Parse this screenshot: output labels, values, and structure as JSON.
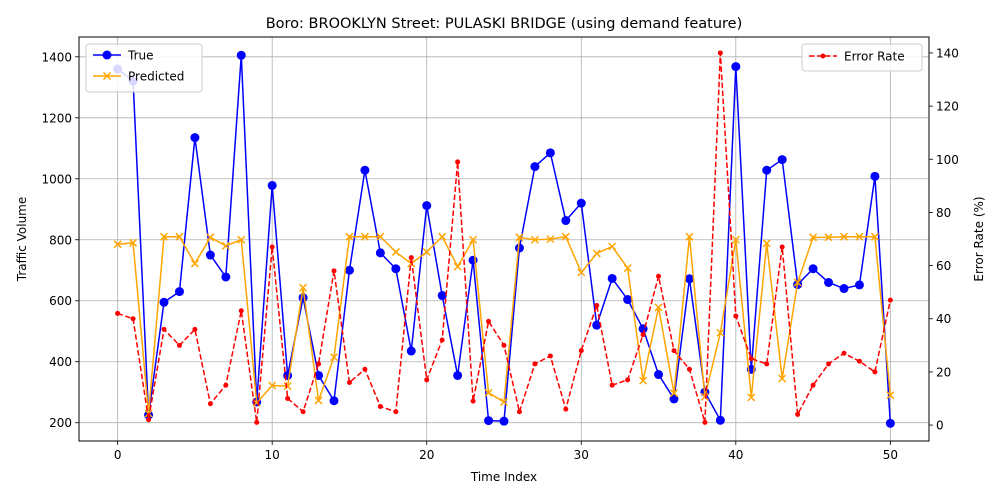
{
  "chart_data": {
    "type": "line",
    "title": "Boro: BROOKLYN Street: PULASKI BRIDGE (using demand feature)",
    "xlabel": "Time Index",
    "ylabel": "Traffic Volume",
    "y2label": "Error Rate (%)",
    "xlim": [
      -2.5,
      52.5
    ],
    "ylim": [
      140,
      1465
    ],
    "y2lim": [
      -6,
      146
    ],
    "xticks": [
      "0",
      "10",
      "20",
      "30",
      "40",
      "50"
    ],
    "yticks": [
      "200",
      "400",
      "600",
      "800",
      "1000",
      "1200",
      "1400"
    ],
    "y2ticks": [
      "0",
      "20",
      "40",
      "60",
      "80",
      "100",
      "120",
      "140"
    ],
    "grid": true,
    "x": [
      0,
      1,
      2,
      3,
      4,
      5,
      6,
      7,
      8,
      9,
      10,
      11,
      12,
      13,
      14,
      15,
      16,
      17,
      18,
      19,
      20,
      21,
      22,
      23,
      24,
      25,
      26,
      27,
      28,
      29,
      30,
      31,
      32,
      33,
      34,
      35,
      36,
      37,
      38,
      39,
      40,
      41,
      42,
      43,
      44,
      45,
      46,
      47,
      48,
      49,
      50
    ],
    "series": [
      {
        "name": "True",
        "axis": "left",
        "color": "#0000ff",
        "marker": "circle",
        "values": [
          1360,
          1320,
          225,
          595,
          630,
          1135,
          750,
          678,
          1405,
          268,
          978,
          355,
          610,
          355,
          272,
          700,
          1028,
          757,
          705,
          435,
          912,
          617,
          355,
          733,
          207,
          205,
          773,
          1040,
          1085,
          863,
          920,
          520,
          673,
          604,
          508,
          358,
          278,
          672,
          300,
          208,
          1368,
          375,
          1028,
          1063,
          653,
          705,
          660,
          640,
          652,
          1008,
          198
        ]
      },
      {
        "name": "Predicted",
        "axis": "left",
        "color": "#ffa500",
        "marker": "x",
        "values": [
          785,
          790,
          230,
          810,
          810,
          722,
          808,
          780,
          800,
          265,
          322,
          320,
          643,
          273,
          415,
          810,
          810,
          810,
          760,
          722,
          760,
          810,
          712,
          800,
          298,
          268,
          808,
          800,
          802,
          810,
          693,
          755,
          778,
          707,
          338,
          578,
          297,
          810,
          285,
          495,
          800,
          283,
          788,
          345,
          660,
          808,
          808,
          810,
          810,
          810,
          290
        ]
      },
      {
        "name": "Error Rate",
        "axis": "right",
        "color": "#ff0000",
        "marker": "point",
        "dashed": true,
        "values": [
          42,
          40,
          2,
          36,
          30,
          36,
          8,
          15,
          43,
          1,
          67,
          10,
          5,
          23,
          58,
          16,
          21,
          7,
          5,
          63,
          17,
          32,
          99,
          9,
          39,
          30,
          5,
          23,
          26,
          6,
          28,
          45,
          15,
          17,
          34,
          56,
          28,
          21,
          1,
          140,
          41,
          25,
          23,
          67,
          4,
          15,
          23,
          27,
          24,
          20,
          47
        ]
      }
    ]
  }
}
